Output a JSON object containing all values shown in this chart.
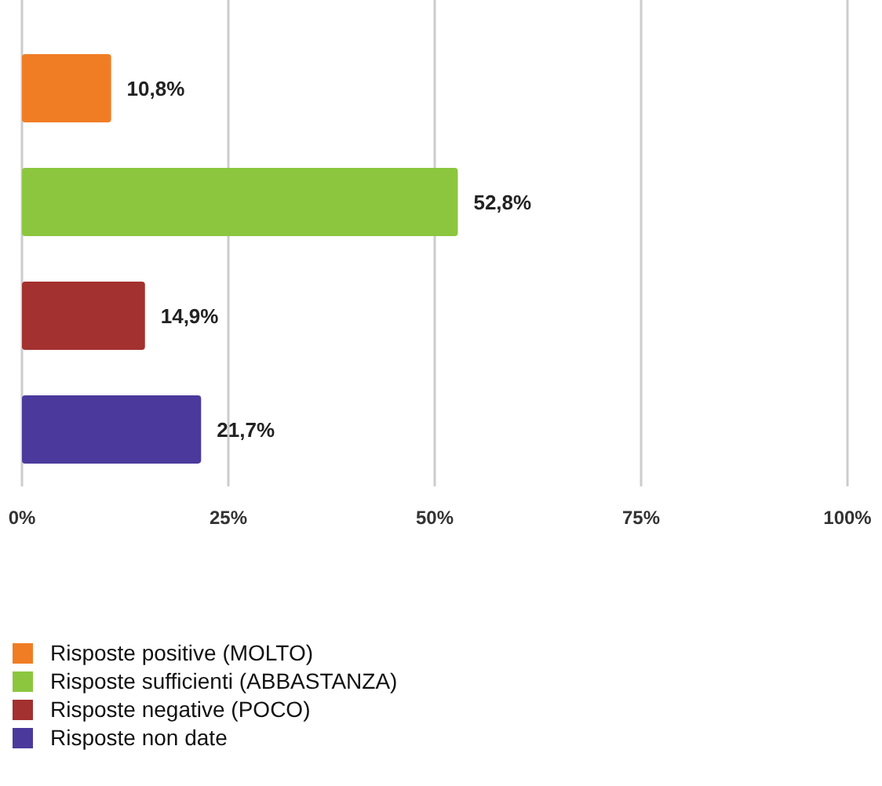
{
  "chart_data": {
    "type": "bar",
    "orientation": "horizontal",
    "categories": [
      null,
      null,
      null,
      null
    ],
    "series": [
      {
        "name": "Risposte positive (MOLTO)",
        "color": "#f07d24",
        "values": [
          10.8,
          null,
          null,
          null
        ],
        "value_labels": [
          "10,8%",
          null,
          null,
          null
        ]
      },
      {
        "name": "Risposte sufficienti (ABBASTANZA)",
        "color": "#8cc63f",
        "values": [
          null,
          52.8,
          null,
          null
        ],
        "value_labels": [
          null,
          "52,8%",
          null,
          null
        ]
      },
      {
        "name": "Risposte negative (POCO)",
        "color": "#a3312f",
        "values": [
          null,
          null,
          14.9,
          null
        ],
        "value_labels": [
          null,
          null,
          "14,9%",
          null
        ]
      },
      {
        "name": "Risposte non date",
        "color": "#4b3a9c",
        "values": [
          null,
          null,
          null,
          21.7
        ],
        "value_labels": [
          null,
          null,
          null,
          "21,7%"
        ]
      }
    ],
    "xlim": [
      0,
      100
    ],
    "xticks": [
      {
        "value": 0,
        "label": "0%"
      },
      {
        "value": 25,
        "label": "25%"
      },
      {
        "value": 50,
        "label": "50%"
      },
      {
        "value": 75,
        "label": "75%"
      },
      {
        "value": 100,
        "label": "100%"
      }
    ],
    "grid": "x",
    "legend": "bottom",
    "tick_labels": "x"
  }
}
